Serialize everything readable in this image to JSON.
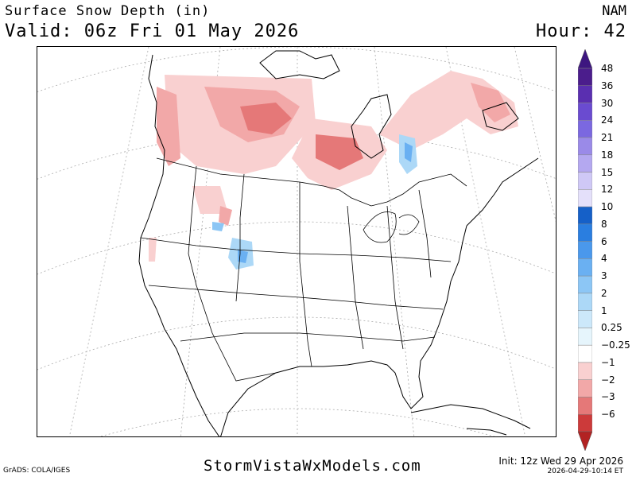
{
  "header": {
    "title": "Surface Snow Depth (in)",
    "valid": "Valid: 06z Fri 01 May 2026",
    "model": "NAM",
    "hour": "Hour: 42"
  },
  "legend": {
    "entries": [
      {
        "label": "48",
        "color": "#4b1d8c"
      },
      {
        "label": "36",
        "color": "#5a2fb0"
      },
      {
        "label": "30",
        "color": "#6a4bd0"
      },
      {
        "label": "24",
        "color": "#7b68e0"
      },
      {
        "label": "21",
        "color": "#9a8ae8"
      },
      {
        "label": "18",
        "color": "#b4a8f0"
      },
      {
        "label": "15",
        "color": "#cfc8f6"
      },
      {
        "label": "12",
        "color": "#e4e0fa"
      },
      {
        "label": "10",
        "color": "#1560c8"
      },
      {
        "label": "8",
        "color": "#2a7ee0"
      },
      {
        "label": "6",
        "color": "#4a98ec"
      },
      {
        "label": "4",
        "color": "#6ab0f2"
      },
      {
        "label": "3",
        "color": "#8cc6f5"
      },
      {
        "label": "2",
        "color": "#acd8f7"
      },
      {
        "label": "1",
        "color": "#cce8fa"
      },
      {
        "label": "0.25",
        "color": "#e6f5fc"
      },
      {
        "label": "−0.25",
        "color": "#ffffff"
      },
      {
        "label": "−1",
        "color": "#f9d0d0"
      },
      {
        "label": "−2",
        "color": "#f2a8a8"
      },
      {
        "label": "−3",
        "color": "#e57878"
      },
      {
        "label": "−6",
        "color": "#cc3a3a"
      }
    ],
    "top_arrow_color": "#3d1680",
    "bottom_arrow_color": "#b22222"
  },
  "footer": {
    "site": "StormVistaWxModels.com",
    "grads": "GrADS: COLA/IGES",
    "init": "Init: 12z Wed 29 Apr 2026",
    "stamp": "2026-04-29-10:14 ET"
  }
}
